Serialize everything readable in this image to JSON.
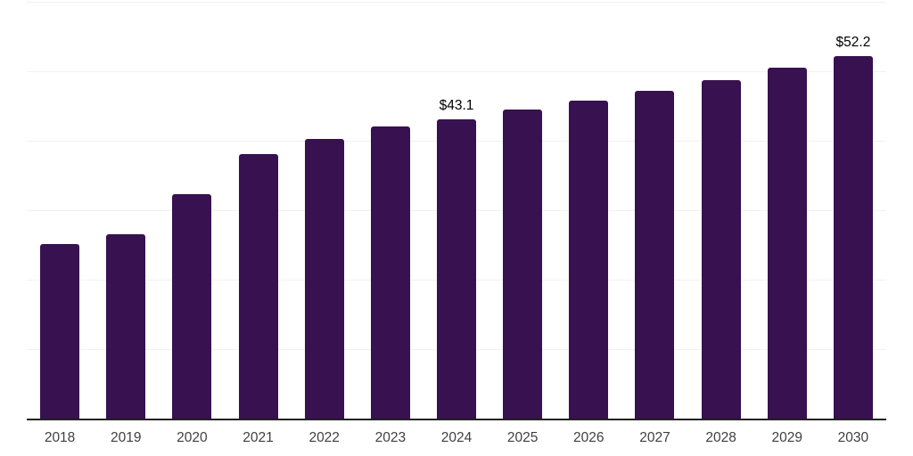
{
  "chart_data": {
    "type": "bar",
    "title": "",
    "xlabel": "",
    "ylabel": "",
    "categories": [
      "2018",
      "2019",
      "2020",
      "2021",
      "2022",
      "2023",
      "2024",
      "2025",
      "2026",
      "2027",
      "2028",
      "2029",
      "2030"
    ],
    "values": [
      25.1,
      26.6,
      32.3,
      38.1,
      40.2,
      42.0,
      43.1,
      44.5,
      45.8,
      47.2,
      48.7,
      50.5,
      52.2
    ],
    "bar_labels": [
      "",
      "",
      "",
      "",
      "",
      "",
      "$43.1",
      "",
      "",
      "",
      "",
      "",
      "$52.2"
    ],
    "ylim": [
      0,
      60
    ],
    "gridline_step": 10,
    "grid": "horizontal",
    "legend": "none",
    "y_axis_tick_labels_visible": false,
    "colors": {
      "bar": "#371150",
      "gridline": "#f2f2f2",
      "axis_line": "#222222",
      "tick_label": "#404040",
      "data_label": "#000000",
      "background": "#ffffff"
    }
  }
}
